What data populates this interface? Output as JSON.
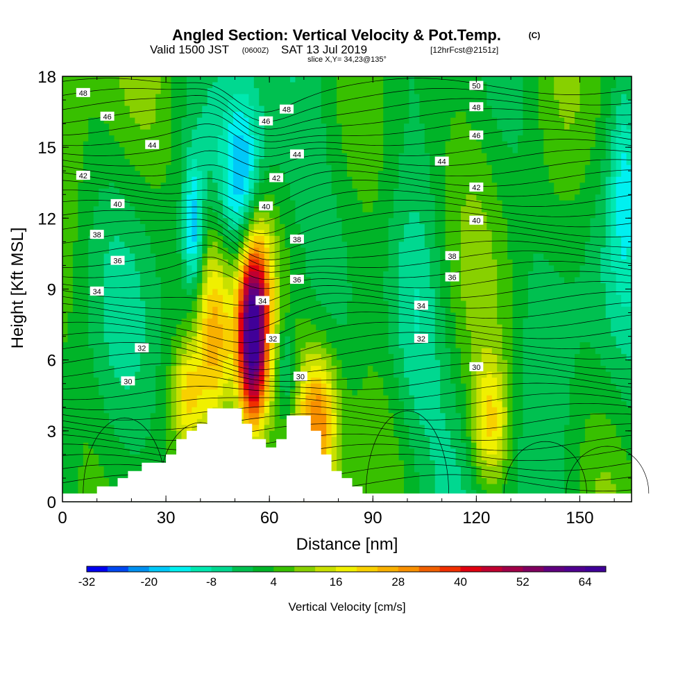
{
  "header": {
    "title": "Angled Section: Vertical Velocity & Pot.Temp.",
    "copyright": "(C)",
    "valid_line1": "Valid 1500 JST",
    "valid_zulu": "(0600Z)",
    "valid_line2": "SAT 13 Jul 2019",
    "forecast": "[12hrFcst@2151z]",
    "slice": "slice X,Y= 34,23@135°"
  },
  "chart_data": {
    "type": "heatmap",
    "title": "Angled Section: Vertical Velocity & Pot.Temp.",
    "xlabel": "Distance [nm]",
    "ylabel": "Height [Kft MSL]",
    "xlim": [
      0,
      165
    ],
    "ylim": [
      0,
      18
    ],
    "x_ticks": [
      "0",
      "30",
      "60",
      "90",
      "120",
      "150"
    ],
    "y_ticks": [
      "0",
      "3",
      "6",
      "9",
      "12",
      "15",
      "18"
    ],
    "colorbar": {
      "label": "Vertical Velocity [cm/s]",
      "tick_labels": [
        "-32",
        "-20",
        "-8",
        "4",
        "16",
        "28",
        "40",
        "52",
        "64"
      ],
      "min": -32,
      "max": 68,
      "step": 4,
      "colors": [
        "#0000f0",
        "#0048f0",
        "#0090f0",
        "#00c8f8",
        "#00f0f0",
        "#00e8b0",
        "#00d890",
        "#00c050",
        "#00b428",
        "#38c000",
        "#88d000",
        "#c8e000",
        "#f0f000",
        "#f8d000",
        "#f8b000",
        "#f89000",
        "#f06000",
        "#f03000",
        "#e00010",
        "#c00030",
        "#a00048",
        "#800060",
        "#600080",
        "#500090",
        "#400098"
      ]
    },
    "theta_labels": [
      {
        "x": 6,
        "y": 17.3,
        "text": "48"
      },
      {
        "x": 13,
        "y": 16.3,
        "text": "46"
      },
      {
        "x": 26,
        "y": 15.1,
        "text": "44"
      },
      {
        "x": 6,
        "y": 13.8,
        "text": "42"
      },
      {
        "x": 16,
        "y": 12.6,
        "text": "40"
      },
      {
        "x": 10,
        "y": 11.3,
        "text": "38"
      },
      {
        "x": 16,
        "y": 10.2,
        "text": "36"
      },
      {
        "x": 10,
        "y": 8.9,
        "text": "34"
      },
      {
        "x": 23,
        "y": 6.5,
        "text": "32"
      },
      {
        "x": 19,
        "y": 5.1,
        "text": "30"
      },
      {
        "x": 65,
        "y": 16.6,
        "text": "48"
      },
      {
        "x": 59,
        "y": 16.1,
        "text": "46"
      },
      {
        "x": 68,
        "y": 14.7,
        "text": "44"
      },
      {
        "x": 62,
        "y": 13.7,
        "text": "42"
      },
      {
        "x": 59,
        "y": 12.5,
        "text": "40"
      },
      {
        "x": 68,
        "y": 11.1,
        "text": "38"
      },
      {
        "x": 68,
        "y": 9.4,
        "text": "36"
      },
      {
        "x": 58,
        "y": 8.5,
        "text": "34"
      },
      {
        "x": 61,
        "y": 6.9,
        "text": "32"
      },
      {
        "x": 69,
        "y": 5.3,
        "text": "30"
      },
      {
        "x": 120,
        "y": 17.6,
        "text": "50"
      },
      {
        "x": 120,
        "y": 16.7,
        "text": "48"
      },
      {
        "x": 120,
        "y": 15.5,
        "text": "46"
      },
      {
        "x": 110,
        "y": 14.4,
        "text": "44"
      },
      {
        "x": 120,
        "y": 13.3,
        "text": "42"
      },
      {
        "x": 120,
        "y": 11.9,
        "text": "40"
      },
      {
        "x": 113,
        "y": 10.4,
        "text": "38"
      },
      {
        "x": 113,
        "y": 9.5,
        "text": "36"
      },
      {
        "x": 104,
        "y": 8.3,
        "text": "34"
      },
      {
        "x": 104,
        "y": 6.9,
        "text": "32"
      },
      {
        "x": 120,
        "y": 5.7,
        "text": "30"
      }
    ],
    "terrain_profile": [
      {
        "x": 0,
        "y": 0.35
      },
      {
        "x": 10,
        "y": 0.35
      },
      {
        "x": 10,
        "y": 0.65
      },
      {
        "x": 16,
        "y": 0.65
      },
      {
        "x": 16,
        "y": 1.0
      },
      {
        "x": 19,
        "y": 1.0
      },
      {
        "x": 19,
        "y": 1.3
      },
      {
        "x": 23,
        "y": 1.3
      },
      {
        "x": 23,
        "y": 1.65
      },
      {
        "x": 30,
        "y": 1.65
      },
      {
        "x": 30,
        "y": 2.0
      },
      {
        "x": 33,
        "y": 2.0
      },
      {
        "x": 33,
        "y": 2.65
      },
      {
        "x": 36,
        "y": 2.65
      },
      {
        "x": 36,
        "y": 3.0
      },
      {
        "x": 39,
        "y": 3.0
      },
      {
        "x": 39,
        "y": 3.3
      },
      {
        "x": 42,
        "y": 3.3
      },
      {
        "x": 42,
        "y": 3.95
      },
      {
        "x": 52,
        "y": 3.95
      },
      {
        "x": 52,
        "y": 3.3
      },
      {
        "x": 55,
        "y": 3.3
      },
      {
        "x": 55,
        "y": 2.65
      },
      {
        "x": 59,
        "y": 2.65
      },
      {
        "x": 59,
        "y": 2.3
      },
      {
        "x": 62,
        "y": 2.3
      },
      {
        "x": 62,
        "y": 2.65
      },
      {
        "x": 65,
        "y": 2.65
      },
      {
        "x": 65,
        "y": 3.65
      },
      {
        "x": 72,
        "y": 3.65
      },
      {
        "x": 72,
        "y": 3.0
      },
      {
        "x": 75,
        "y": 3.0
      },
      {
        "x": 75,
        "y": 2.0
      },
      {
        "x": 78,
        "y": 2.0
      },
      {
        "x": 78,
        "y": 1.3
      },
      {
        "x": 81,
        "y": 1.3
      },
      {
        "x": 81,
        "y": 1.0
      },
      {
        "x": 84,
        "y": 1.0
      },
      {
        "x": 84,
        "y": 0.65
      },
      {
        "x": 87,
        "y": 0.65
      },
      {
        "x": 87,
        "y": 0.35
      },
      {
        "x": 165,
        "y": 0.35
      }
    ],
    "updraft_cores": [
      {
        "x": 44,
        "y": 7.0,
        "sx": 4,
        "sy": 3.0,
        "w": 26
      },
      {
        "x": 55,
        "y": 6.5,
        "sx": 3.0,
        "sy": 2.5,
        "w": 52
      },
      {
        "x": 56,
        "y": 9.0,
        "sx": 3.5,
        "sy": 2.5,
        "w": 24
      },
      {
        "x": 74,
        "y": 3.5,
        "sx": 4,
        "sy": 2.0,
        "w": 28
      },
      {
        "x": 124,
        "y": 3.2,
        "sx": 4,
        "sy": 2.0,
        "w": 20
      },
      {
        "x": 36,
        "y": 4.5,
        "sx": 3,
        "sy": 1.5,
        "w": 16
      }
    ],
    "downdraft_cores": [
      {
        "x": 52,
        "y": 13.5,
        "sx": 4,
        "sy": 2.5,
        "w": -22
      },
      {
        "x": 38,
        "y": 11.5,
        "sx": 2,
        "sy": 2.0,
        "w": -20
      },
      {
        "x": 65,
        "y": 5.5,
        "sx": 2,
        "sy": 1.5,
        "w": -12
      },
      {
        "x": 102,
        "y": 7.5,
        "sx": 6,
        "sy": 4.0,
        "w": -10
      },
      {
        "x": 163,
        "y": 14,
        "sx": 3,
        "sy": 3.0,
        "w": -12
      }
    ]
  }
}
